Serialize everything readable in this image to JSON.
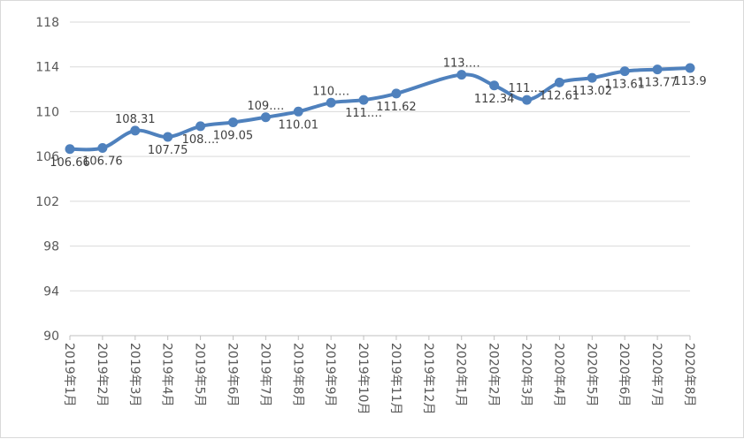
{
  "chart_data": {
    "type": "line",
    "title": "",
    "xlabel": "",
    "ylabel": "",
    "ylim": [
      90,
      118
    ],
    "yticks": [
      90,
      94,
      98,
      102,
      106,
      110,
      114,
      118
    ],
    "grid": true,
    "legend": "none",
    "categories": [
      "2019年1月",
      "2019年2月",
      "2019年3月",
      "2019年4月",
      "2019年5月",
      "2019年6月",
      "2019年7月",
      "2019年8月",
      "2019年9月",
      "2019年10月",
      "2019年11月",
      "2019年12月",
      "2020年1月",
      "2020年2月",
      "2020年3月",
      "2020年4月",
      "2020年5月",
      "2020年6月",
      "2020年7月",
      "2020年8月"
    ],
    "values": [
      106.66,
      106.76,
      108.31,
      107.75,
      108.7,
      109.05,
      109.5,
      110.01,
      110.8,
      111.05,
      111.62,
      null,
      113.3,
      112.34,
      111.05,
      112.61,
      113.02,
      113.61,
      113.77,
      113.9
    ],
    "labels": [
      "106.66",
      "106.76",
      "108.31",
      "107.75",
      "108.…",
      "109.05",
      "109.…",
      "110.01",
      "110.…",
      "111.…",
      "111.62",
      "",
      "113.…",
      "112.34",
      "111.…",
      "112.61",
      "113.02",
      "113.61",
      "113.77",
      "113.9"
    ],
    "colors": {
      "line": "#4f81bd",
      "grid": "#d9d9d9",
      "axis": "#bfbfbf"
    }
  }
}
